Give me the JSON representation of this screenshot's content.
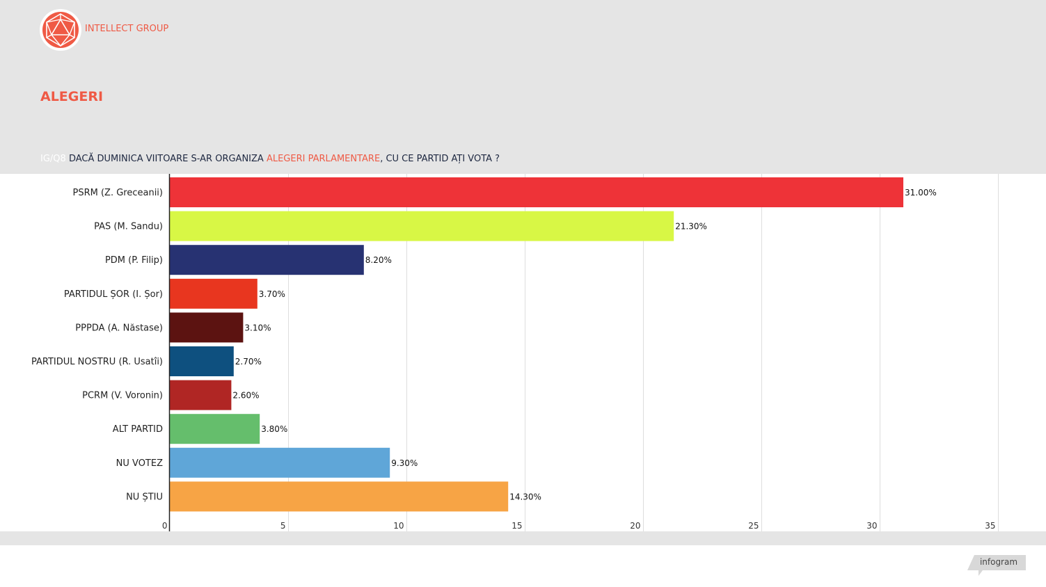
{
  "brand": {
    "name": "INTELLECT GROUP",
    "color": "#ef5a45"
  },
  "heading": "ALEGERI",
  "question": {
    "prefix": "IG/Q8",
    "part1": "DACĂ DUMINICA VIITOARE S-AR ORGANIZA ",
    "highlight": "ALEGERI PARLAMENTARE",
    "part2": ", CU CE PARTID AȚI VOTA ?"
  },
  "footer": {
    "badge": "infogram"
  },
  "chart_data": {
    "type": "bar",
    "orientation": "horizontal",
    "categories": [
      "PSRM (Z. Greceanii)",
      "PAS (M. Sandu)",
      "PDM (P. Filip)",
      "PARTIDUL ȘOR (I. Șor)",
      "PPPDA (A. Năstase)",
      "PARTIDUL NOSTRU (R. Usatîi)",
      "PCRM (V. Voronin)",
      "ALT PARTID",
      "NU VOTEZ",
      "NU ȘTIU"
    ],
    "values": [
      31.0,
      21.3,
      8.2,
      3.7,
      3.1,
      2.7,
      2.6,
      3.8,
      9.3,
      14.3
    ],
    "value_labels": [
      "31.00%",
      "21.30%",
      "8.20%",
      "3.70%",
      "3.10%",
      "2.70%",
      "2.60%",
      "3.80%",
      "9.30%",
      "14.30%"
    ],
    "colors": [
      "#ee3338",
      "#d8f745",
      "#273272",
      "#e8361f",
      "#5c1311",
      "#0e507f",
      "#b02624",
      "#65be6c",
      "#5fa6d8",
      "#f7a445"
    ],
    "xlim": [
      0,
      35
    ],
    "xticks": [
      0,
      5,
      10,
      15,
      20,
      25,
      30,
      35
    ],
    "grid": true
  }
}
